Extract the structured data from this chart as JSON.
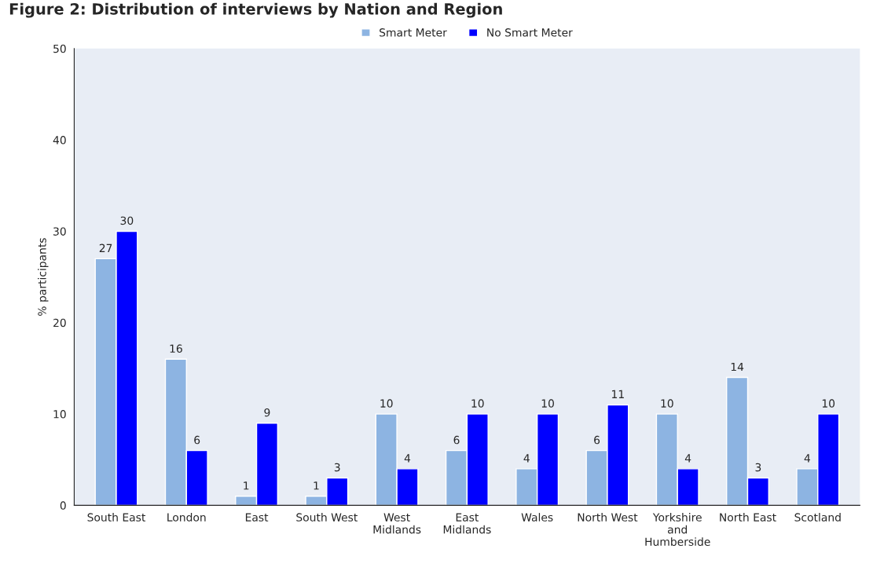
{
  "chart_data": {
    "type": "bar",
    "title": "Figure 2: Distribution of interviews by Nation and Region",
    "ylabel": "% participants",
    "categories": [
      "South East",
      "London",
      "East",
      "South West",
      "West\nMidlands",
      "East\nMidlands",
      "Wales",
      "North West",
      "Yorkshire\nand\nHumberside",
      "North East",
      "Scotland"
    ],
    "series": [
      {
        "name": "Smart Meter",
        "color": "#8db4e2",
        "values": [
          27,
          16,
          1,
          1,
          10,
          6,
          4,
          6,
          10,
          14,
          4
        ]
      },
      {
        "name": "No Smart Meter",
        "color": "#0000ff",
        "values": [
          30,
          6,
          9,
          3,
          4,
          10,
          10,
          11,
          4,
          3,
          10
        ]
      }
    ],
    "ylim": [
      0,
      50
    ],
    "yticks": [
      0,
      10,
      20,
      30,
      40,
      50
    ],
    "data_labels": true,
    "legend": "top",
    "grid": false
  }
}
